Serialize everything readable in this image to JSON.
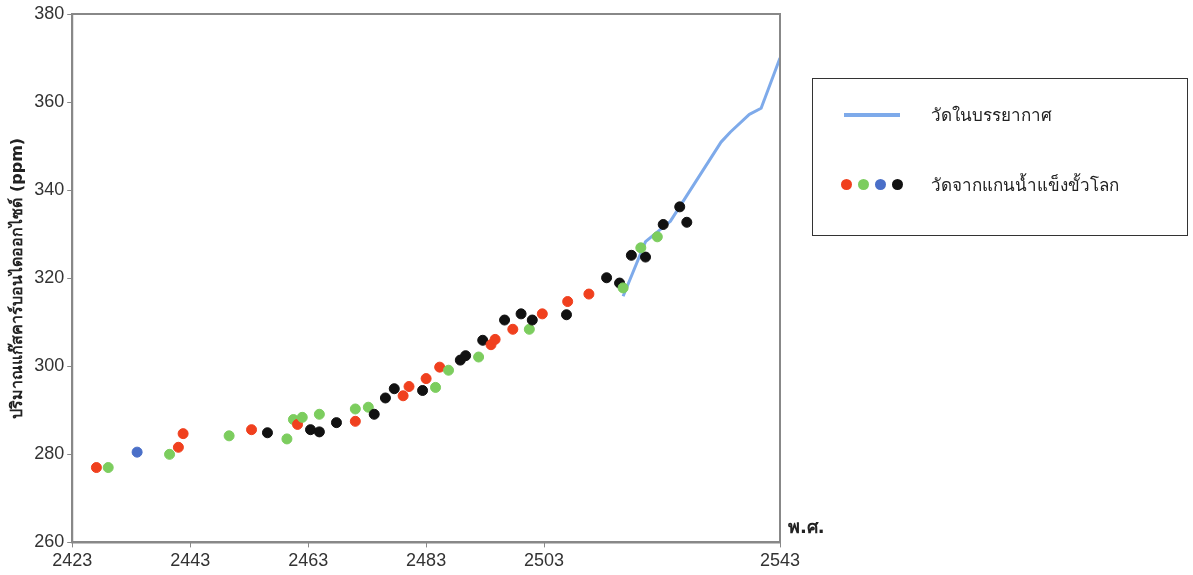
{
  "chart_data": {
    "type": "scatter",
    "ylabel": "ปริมาณแก๊สคาร์บอนไดออกไซด์ (ppm)",
    "xlabel": "พ.ศ.",
    "xlim": [
      2423,
      2543
    ],
    "xticks": [
      2423,
      2443,
      2463,
      2483,
      2503,
      2543
    ],
    "ylim": [
      260,
      380
    ],
    "yticks": [
      260,
      280,
      300,
      320,
      340,
      360,
      380
    ],
    "grid": false,
    "legend": "right",
    "marker": "circle",
    "series": [
      {
        "name": "วัดในบรรยากาศ",
        "type": "line",
        "marker": "none",
        "color": "#7eaaea",
        "x": [
          2516.4,
          2520.2,
          2524.4,
          2533.0,
          2534.6,
          2537.8,
          2539.8,
          2543
        ],
        "values": [
          315.9,
          328.3,
          332.9,
          350.9,
          353.2,
          357.2,
          358.6,
          370
        ]
      },
      {
        "name": "วัดจากแกนน้ำแข็งขั้วโลก",
        "x": [
          2427.1,
          2429.1,
          2434.0,
          2439.5,
          2441.0,
          2441.8,
          2449.6,
          2453.4,
          2456.1,
          2459.4,
          2460.5,
          2461.2,
          2462.0,
          2463.4,
          2464.9,
          2464.9,
          2467.8,
          2471.0,
          2471.0,
          2473.2,
          2474.2,
          2476.1,
          2477.6,
          2479.1,
          2480.1,
          2482.4,
          2483.0,
          2484.6,
          2485.3,
          2486.8,
          2488.8,
          2489.7,
          2491.9,
          2492.6,
          2494.0,
          2494.7,
          2496.3,
          2497.7,
          2499.1,
          2500.5,
          2501.0,
          2502.7,
          2506.8,
          2507.0,
          2510.6,
          2513.6,
          2515.8,
          2516.4,
          2517.8,
          2520.2,
          2519.4,
          2522.2,
          2523.2,
          2527.2,
          2526.0
        ],
        "values": [
          277.0,
          277.0,
          280.5,
          280.0,
          281.6,
          284.7,
          284.2,
          285.6,
          284.9,
          283.5,
          287.9,
          286.8,
          288.4,
          285.6,
          285.1,
          289.1,
          287.2,
          287.5,
          290.3,
          290.7,
          289.1,
          292.8,
          294.9,
          293.3,
          295.4,
          294.5,
          297.2,
          295.2,
          299.8,
          299.1,
          301.4,
          302.4,
          302.1,
          305.9,
          304.9,
          306.1,
          310.5,
          308.4,
          311.9,
          308.4,
          310.5,
          311.9,
          311.7,
          314.7,
          316.4,
          320.1,
          318.9,
          317.8,
          325.2,
          324.8,
          326.9,
          329.4,
          332.2,
          332.7,
          336.2
        ],
        "colors": [
          "#f0401e",
          "#7ccd5e",
          "#4a6fc8",
          "#7ccd5e",
          "#f0401e",
          "#f0401e",
          "#7ccd5e",
          "#f0401e",
          "#111111",
          "#7ccd5e",
          "#7ccd5e",
          "#f0401e",
          "#7ccd5e",
          "#111111",
          "#111111",
          "#7ccd5e",
          "#111111",
          "#f0401e",
          "#7ccd5e",
          "#7ccd5e",
          "#111111",
          "#111111",
          "#111111",
          "#f0401e",
          "#f0401e",
          "#111111",
          "#f0401e",
          "#7ccd5e",
          "#f0401e",
          "#7ccd5e",
          "#111111",
          "#111111",
          "#7ccd5e",
          "#111111",
          "#f0401e",
          "#f0401e",
          "#111111",
          "#f0401e",
          "#111111",
          "#7ccd5e",
          "#111111",
          "#f0401e",
          "#111111",
          "#f0401e",
          "#f0401e",
          "#111111",
          "#111111",
          "#7ccd5e",
          "#111111",
          "#111111",
          "#7ccd5e",
          "#7ccd5e",
          "#111111",
          "#111111",
          "#111111"
        ]
      }
    ]
  }
}
